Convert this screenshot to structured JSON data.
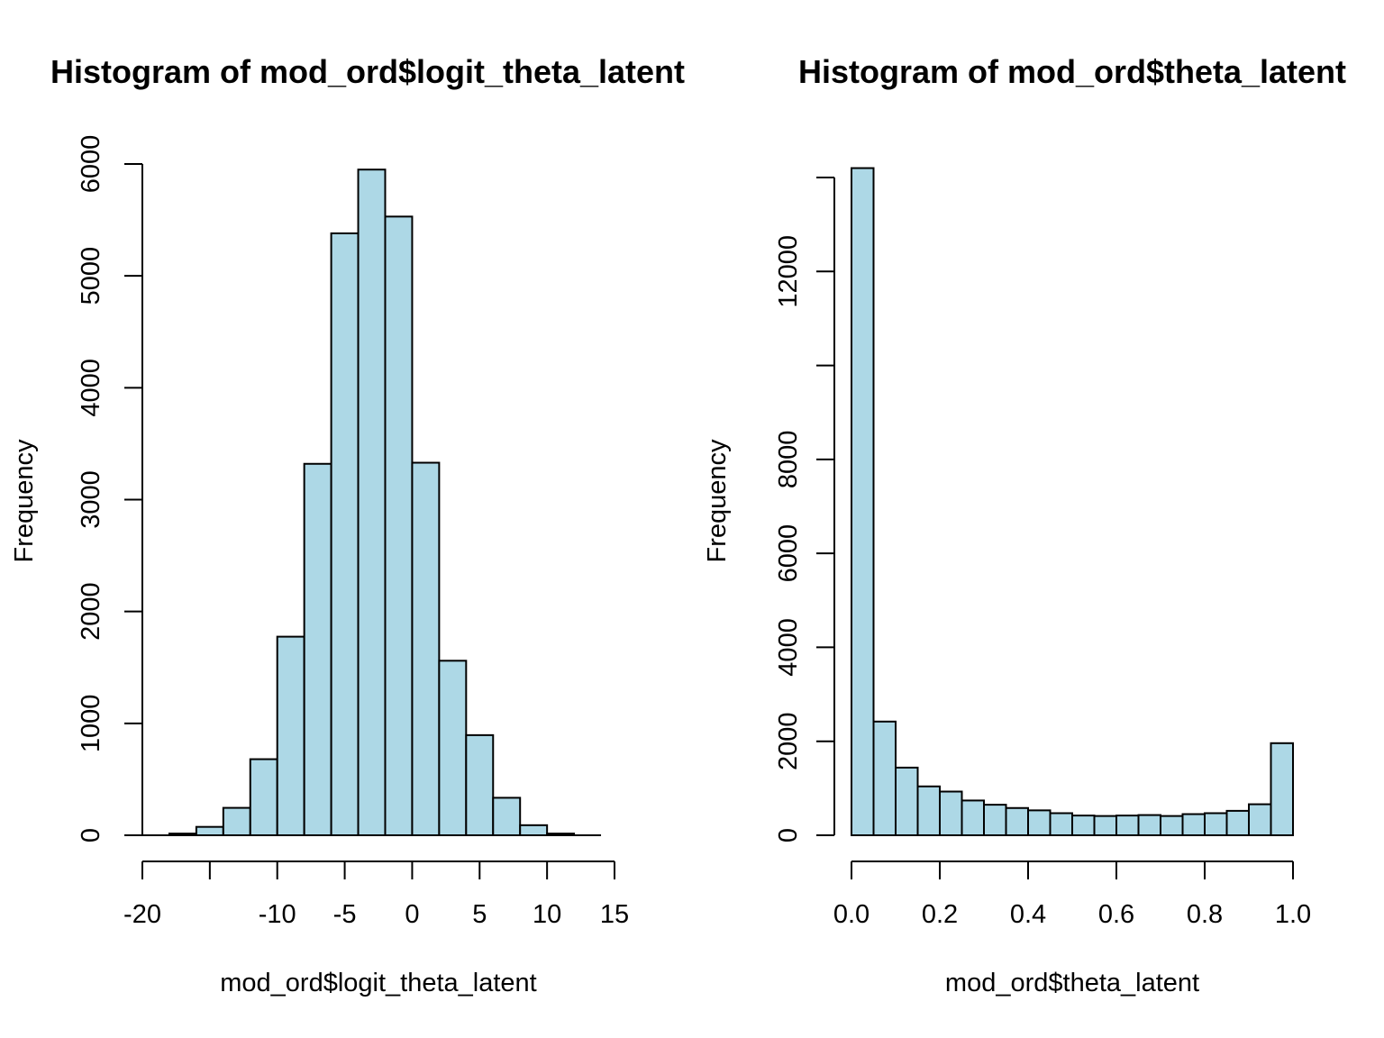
{
  "colors": {
    "bar_fill": "#add8e6",
    "bar_stroke": "#000000",
    "axis": "#000000"
  },
  "chart_data": [
    {
      "type": "bar",
      "subtype": "histogram",
      "title": "Histogram of mod_ord$logit_theta_latent",
      "xlabel": "mod_ord$logit_theta_latent",
      "ylabel": "Frequency",
      "xlim": [
        -20,
        15
      ],
      "ylim": [
        0,
        6000
      ],
      "bin_edges": [
        -20,
        -18,
        -16,
        -14,
        -12,
        -10,
        -8,
        -6,
        -4,
        -2,
        0,
        2,
        4,
        6,
        8,
        10,
        12,
        14
      ],
      "values": [
        0,
        15,
        75,
        245,
        680,
        1775,
        3320,
        5380,
        5950,
        5530,
        3330,
        1560,
        895,
        335,
        90,
        15,
        0
      ],
      "xticks": [
        -20,
        -15,
        -10,
        -5,
        0,
        5,
        10,
        15
      ],
      "xtick_labels": [
        "-20",
        "",
        "-10",
        "-5",
        "0",
        "5",
        "10",
        "15"
      ],
      "yticks": [
        0,
        1000,
        2000,
        3000,
        4000,
        5000,
        6000
      ],
      "ytick_labels": [
        "0",
        "1000",
        "2000",
        "3000",
        "4000",
        "5000",
        "6000"
      ],
      "grid": false,
      "legend": "none"
    },
    {
      "type": "bar",
      "subtype": "histogram",
      "title": "Histogram of mod_ord$theta_latent",
      "xlabel": "mod_ord$theta_latent",
      "ylabel": "Frequency",
      "xlim": [
        0.0,
        1.0
      ],
      "ylim": [
        0,
        14000
      ],
      "bin_edges": [
        0.0,
        0.05,
        0.1,
        0.15,
        0.2,
        0.25,
        0.3,
        0.35,
        0.4,
        0.45,
        0.5,
        0.55,
        0.6,
        0.65,
        0.7,
        0.75,
        0.8,
        0.85,
        0.9,
        0.95,
        1.0
      ],
      "values": [
        14200,
        2420,
        1440,
        1040,
        930,
        740,
        650,
        580,
        530,
        470,
        420,
        410,
        420,
        430,
        410,
        450,
        470,
        520,
        660,
        1960
      ],
      "xticks": [
        0.0,
        0.2,
        0.4,
        0.6,
        0.8,
        1.0
      ],
      "xtick_labels": [
        "0.0",
        "0.2",
        "0.4",
        "0.6",
        "0.8",
        "1.0"
      ],
      "yticks": [
        0,
        2000,
        4000,
        6000,
        8000,
        10000,
        12000,
        14000
      ],
      "ytick_labels": [
        "0",
        "2000",
        "4000",
        "6000",
        "8000",
        "",
        "12000",
        ""
      ],
      "grid": false,
      "legend": "none"
    }
  ]
}
